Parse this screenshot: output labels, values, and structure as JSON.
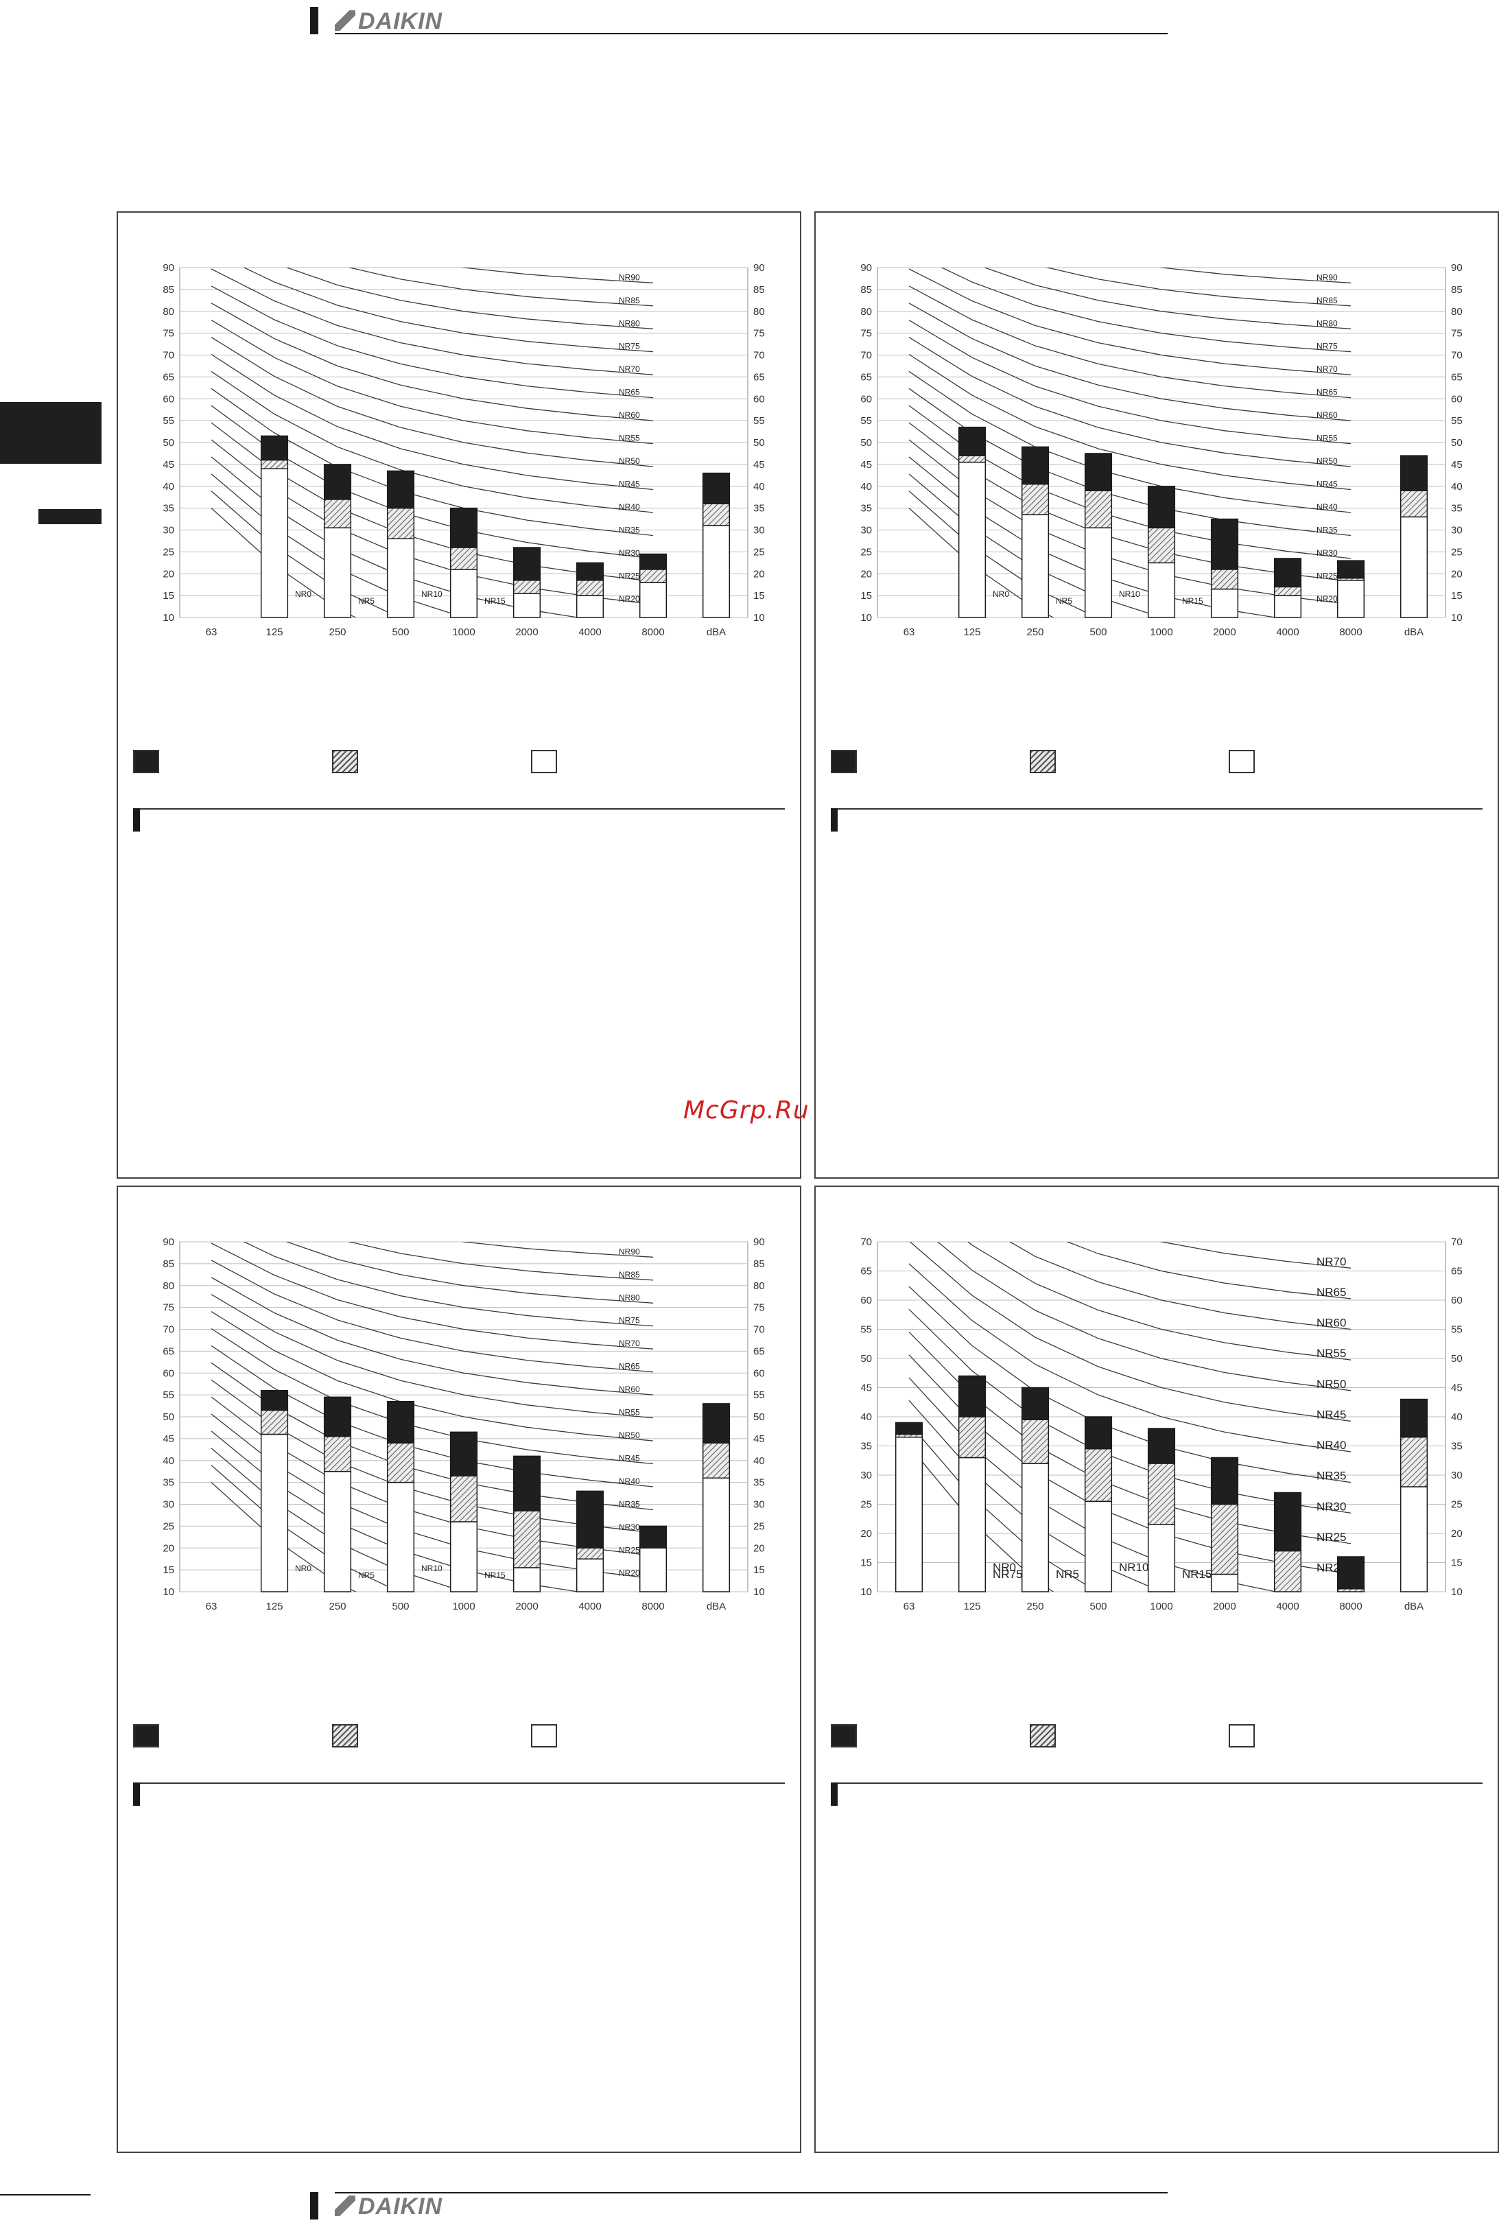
{
  "brand": {
    "name": "DAIKIN"
  },
  "watermark": "McGrp.Ru",
  "chart_data": [
    {
      "type": "bar",
      "categories": [
        "63",
        "125",
        "250",
        "500",
        "1000",
        "2000",
        "4000",
        "8000",
        "dBA"
      ],
      "ylim": [
        10,
        90
      ],
      "yticks": [
        10,
        15,
        20,
        25,
        30,
        35,
        40,
        45,
        50,
        55,
        60,
        65,
        70,
        75,
        80,
        85,
        90
      ],
      "grid": true,
      "nr_curves": [
        "NR0",
        "NR5",
        "NR10",
        "NR15",
        "NR20",
        "NR25",
        "NR30",
        "NR35",
        "NR40",
        "NR45",
        "NR50",
        "NR55",
        "NR60",
        "NR65",
        "NR70",
        "NR75",
        "NR80",
        "NR85",
        "NR90"
      ],
      "series": [
        {
          "values": [
            null,
            51.5,
            45,
            43.5,
            35,
            26,
            22.5,
            24.5,
            43
          ]
        },
        {
          "values": [
            null,
            46,
            37,
            35,
            26,
            18.5,
            18.5,
            21,
            36
          ]
        },
        {
          "values": [
            null,
            44,
            30.5,
            28,
            21,
            15.5,
            15,
            18,
            31
          ]
        }
      ]
    },
    {
      "type": "bar",
      "categories": [
        "63",
        "125",
        "250",
        "500",
        "1000",
        "2000",
        "4000",
        "8000",
        "dBA"
      ],
      "ylim": [
        10,
        90
      ],
      "yticks": [
        10,
        15,
        20,
        25,
        30,
        35,
        40,
        45,
        50,
        55,
        60,
        65,
        70,
        75,
        80,
        85,
        90
      ],
      "grid": true,
      "nr_curves": [
        "NR0",
        "NR5",
        "NR10",
        "NR15",
        "NR20",
        "NR25",
        "NR30",
        "NR35",
        "NR40",
        "NR45",
        "NR50",
        "NR55",
        "NR60",
        "NR65",
        "NR70",
        "NR75",
        "NR80",
        "NR85",
        "NR90"
      ],
      "series": [
        {
          "values": [
            null,
            53.5,
            49,
            47.5,
            40,
            32.5,
            23.5,
            23,
            47
          ]
        },
        {
          "values": [
            null,
            47,
            40.5,
            39,
            30.5,
            21,
            17,
            19,
            39
          ]
        },
        {
          "values": [
            null,
            45.5,
            33.5,
            30.5,
            22.5,
            16.5,
            15,
            18.5,
            33
          ]
        }
      ]
    },
    {
      "type": "bar",
      "categories": [
        "63",
        "125",
        "250",
        "500",
        "1000",
        "2000",
        "4000",
        "8000",
        "dBA"
      ],
      "ylim": [
        10,
        90
      ],
      "yticks": [
        10,
        15,
        20,
        25,
        30,
        35,
        40,
        45,
        50,
        55,
        60,
        65,
        70,
        75,
        80,
        85,
        90
      ],
      "grid": true,
      "nr_curves": [
        "NR0",
        "NR5",
        "NR10",
        "NR15",
        "NR20",
        "NR25",
        "NR30",
        "NR35",
        "NR40",
        "NR45",
        "NR50",
        "NR55",
        "NR60",
        "NR65",
        "NR70",
        "NR75",
        "NR80",
        "NR85",
        "NR90"
      ],
      "series": [
        {
          "values": [
            null,
            56,
            54.5,
            53.5,
            46.5,
            41,
            33,
            25,
            53
          ]
        },
        {
          "values": [
            null,
            51.5,
            45.5,
            44,
            36.5,
            28.5,
            20,
            20,
            44
          ]
        },
        {
          "values": [
            null,
            46,
            37.5,
            35,
            26,
            15.5,
            17.5,
            20,
            36
          ]
        }
      ]
    },
    {
      "type": "bar",
      "categories": [
        "63",
        "125",
        "250",
        "500",
        "1000",
        "2000",
        "4000",
        "8000",
        "dBA"
      ],
      "ylim": [
        10,
        70
      ],
      "yticks": [
        10,
        15,
        20,
        25,
        30,
        35,
        40,
        45,
        50,
        55,
        60,
        65,
        70
      ],
      "grid": true,
      "nr_curves": [
        "NR0",
        "NR5",
        "NR10",
        "NR15",
        "NR20",
        "NR25",
        "NR30",
        "NR35",
        "NR40",
        "NR45",
        "NR50",
        "NR55",
        "NR60",
        "NR65",
        "NR70",
        "NR75"
      ],
      "series": [
        {
          "values": [
            39,
            47,
            45,
            40,
            38,
            33,
            27,
            16,
            43
          ]
        },
        {
          "values": [
            37,
            40,
            39.5,
            34.5,
            32,
            25,
            17,
            10.5,
            36.5
          ]
        },
        {
          "values": [
            36.5,
            33,
            32,
            25.5,
            21.5,
            13,
            10,
            10,
            28
          ]
        }
      ]
    }
  ]
}
